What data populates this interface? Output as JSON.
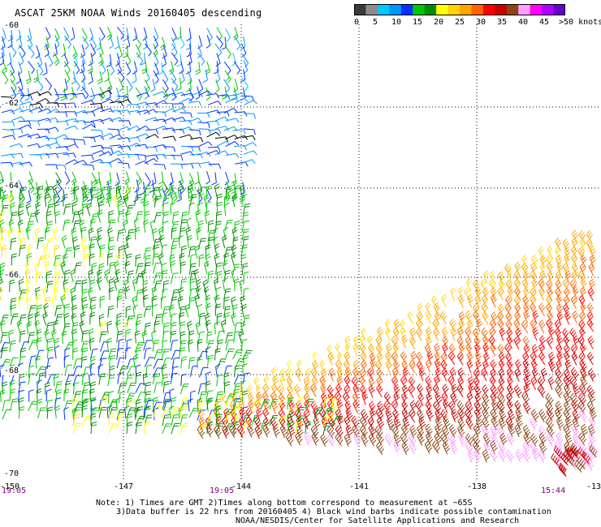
{
  "title": "ASCAT 25KM NOAA Winds 20160405 descending",
  "colorbar": {
    "colors": [
      "#3a3a3a",
      "#8c8c8c",
      "#00c8ff",
      "#0096ff",
      "#0032ff",
      "#00c800",
      "#008c00",
      "#ffff00",
      "#ffd200",
      "#ffa500",
      "#ff6400",
      "#ff0000",
      "#c80000",
      "#8c4614",
      "#ffa0ff",
      "#ff00ff",
      "#b400ff",
      "#6400c8"
    ],
    "labels": [
      "0",
      "5",
      "10",
      "15",
      "20",
      "25",
      "30",
      "35",
      "40",
      "45",
      ">50 knots"
    ]
  },
  "lat_labels": [
    "-60",
    "-62",
    "-64",
    "-66",
    "-68",
    "-70"
  ],
  "lon_labels": [
    "-150",
    "-147",
    "-144",
    "-141",
    "-138",
    "-13"
  ],
  "time_labels": [
    "19:05",
    "19:05",
    "15:44"
  ],
  "notes": [
    "Note: 1) Times are GMT 2)Times along bottom correspond to measurement at ~65S",
    "3)Data buffer is 22 hrs from 20160405 4) Black wind barbs indicate possible contamination",
    "NOAA/NESDIS/Center for Satellite Applications and Research"
  ]
}
